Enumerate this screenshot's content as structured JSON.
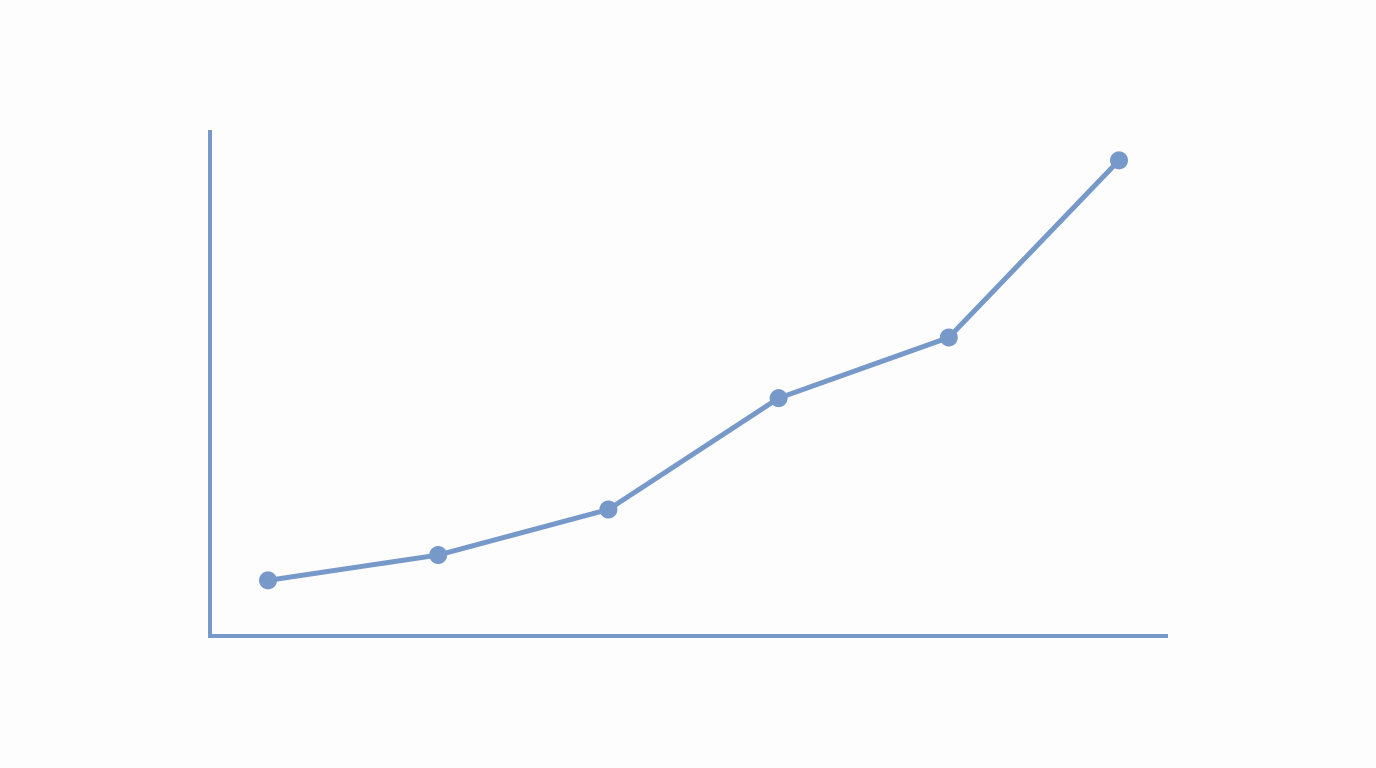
{
  "chart_data": {
    "type": "line",
    "categories": [
      null,
      null,
      null,
      null,
      null,
      null
    ],
    "series": [
      {
        "color": "#7799c9",
        "values": [
          11,
          16,
          25,
          47,
          59,
          94
        ]
      }
    ],
    "ylim": [
      0,
      100
    ],
    "markers": true
  }
}
